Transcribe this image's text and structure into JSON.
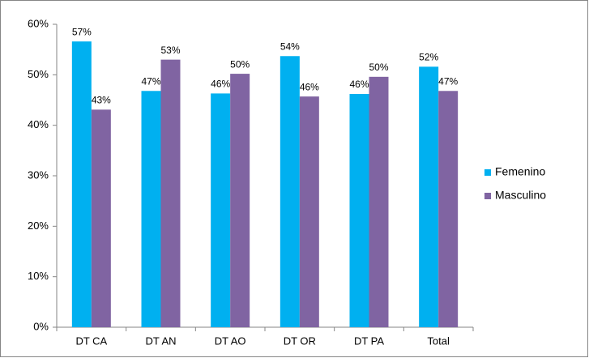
{
  "chart_data": {
    "type": "bar",
    "categories": [
      "DT CA",
      "DT AN",
      "DT AO",
      "DT OR",
      "DT PA",
      "Total"
    ],
    "series": [
      {
        "name": "Femenino",
        "color": "#00b0f0",
        "values": [
          56.6,
          46.8,
          46.3,
          53.7,
          46.2,
          51.6
        ],
        "value_labels": [
          "57%",
          "47%",
          "46%",
          "54%",
          "46%",
          "52%"
        ]
      },
      {
        "name": "Masculino",
        "color": "#8064a2",
        "values": [
          43.1,
          53.0,
          50.2,
          45.7,
          49.6,
          46.8
        ],
        "value_labels": [
          "43%",
          "53%",
          "50%",
          "46%",
          "50%",
          "47%"
        ]
      }
    ],
    "ylim": [
      0,
      60
    ],
    "yticks": [
      {
        "value": 0,
        "label": "0%"
      },
      {
        "value": 10,
        "label": "10%"
      },
      {
        "value": 20,
        "label": "20%"
      },
      {
        "value": 30,
        "label": "30%"
      },
      {
        "value": 40,
        "label": "40%"
      },
      {
        "value": 50,
        "label": "50%"
      },
      {
        "value": 60,
        "label": "60%"
      }
    ],
    "grid": false,
    "legend": "right"
  }
}
